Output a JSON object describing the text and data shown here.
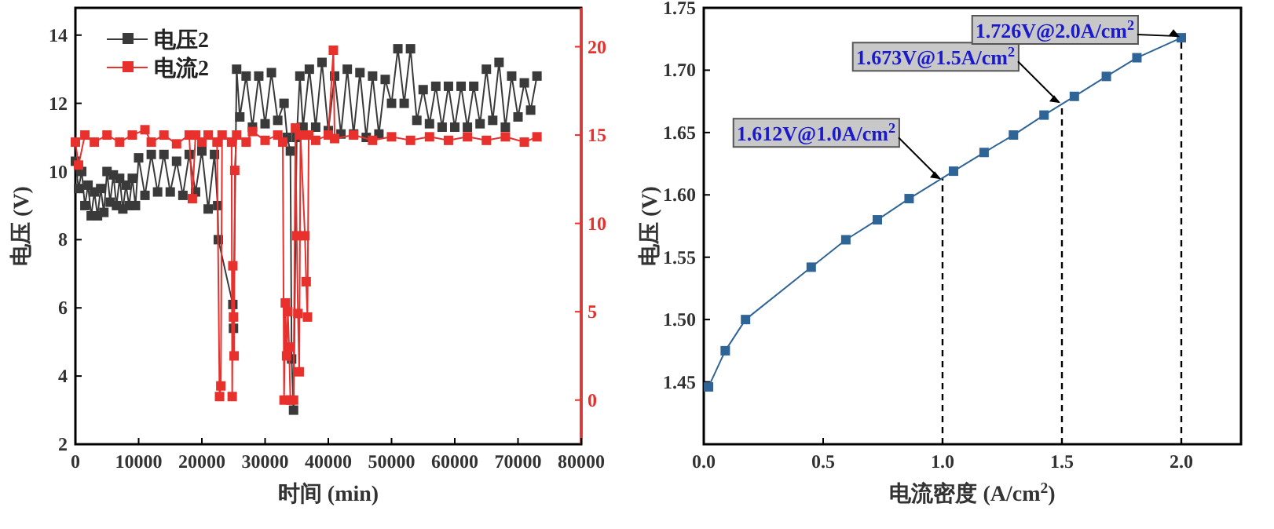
{
  "chart_data": [
    {
      "type": "line",
      "xlabel": "时间 (min)",
      "ylabel": "电压 (V)",
      "xlim": [
        0,
        80000
      ],
      "ylim": [
        2,
        14.8
      ],
      "y2lim": [
        -2.5,
        22.2
      ],
      "xticks": [
        0,
        10000,
        20000,
        30000,
        40000,
        50000,
        60000,
        70000,
        80000
      ],
      "yticks": [
        2,
        4,
        6,
        8,
        10,
        12,
        14
      ],
      "y2ticks": [
        0,
        5,
        10,
        15,
        20
      ],
      "legend": "top left",
      "marker": "square",
      "line_style": "solid",
      "series": [
        {
          "name": "电压2",
          "color": "#3a3a3a",
          "x": [
            0,
            500,
            1000,
            1500,
            2000,
            2500,
            3000,
            3500,
            4000,
            4500,
            5000,
            5500,
            6000,
            6500,
            7000,
            7500,
            8000,
            8500,
            9000,
            9500,
            10000,
            11000,
            12000,
            13000,
            14000,
            15000,
            16000,
            17000,
            18000,
            19000,
            20000,
            21000,
            22000,
            22500,
            22600,
            24900,
            25000,
            25500,
            26000,
            27000,
            28000,
            29000,
            30000,
            31000,
            32000,
            33000,
            33500,
            34000,
            34200,
            34500,
            35000,
            35500,
            36000,
            37000,
            38000,
            39000,
            40000,
            41000,
            42000,
            43000,
            44000,
            45000,
            46000,
            47000,
            48000,
            49000,
            50000,
            51000,
            52000,
            53000,
            54000,
            55000,
            56000,
            57000,
            58000,
            59000,
            60000,
            61000,
            62000,
            63000,
            64000,
            65000,
            66000,
            67000,
            68000,
            69000,
            70000,
            71000,
            72000,
            73000
          ],
          "values": [
            10.3,
            9.5,
            10.0,
            9.0,
            9.6,
            8.7,
            9.4,
            8.7,
            9.5,
            8.8,
            10.0,
            9.1,
            9.9,
            9.0,
            9.8,
            8.9,
            9.6,
            9.0,
            9.8,
            9.0,
            10.4,
            9.3,
            10.5,
            9.4,
            10.5,
            9.4,
            10.3,
            9.3,
            10.5,
            9.4,
            10.6,
            8.9,
            10.5,
            9.0,
            8.0,
            6.1,
            5.4,
            13.0,
            11.6,
            12.8,
            11.3,
            12.8,
            11.4,
            12.9,
            11.5,
            12.0,
            11.0,
            10.6,
            4.5,
            3.0,
            11.0,
            12.8,
            11.3,
            13.0,
            11.3,
            13.2,
            11.2,
            12.8,
            11.1,
            13.0,
            11.1,
            12.9,
            11.0,
            12.8,
            11.1,
            12.7,
            12.0,
            13.6,
            12.0,
            13.6,
            11.5,
            12.4,
            11.4,
            12.5,
            11.3,
            12.5,
            11.3,
            12.5,
            11.3,
            12.5,
            11.4,
            13.0,
            11.5,
            13.2,
            11.3,
            12.8,
            11.6,
            12.6,
            11.8,
            12.8
          ]
        },
        {
          "name": "电流2",
          "color": "#e8302c",
          "axis": "y2",
          "x": [
            0,
            500,
            1500,
            3000,
            5000,
            7000,
            9000,
            11000,
            12000,
            14000,
            16000,
            18000,
            18500,
            19000,
            20000,
            21000,
            22400,
            22800,
            23000,
            23200,
            24700,
            24800,
            24900,
            25000,
            25100,
            25200,
            25500,
            27000,
            28000,
            30000,
            32000,
            32800,
            33000,
            33200,
            33400,
            33600,
            33800,
            34000,
            34500,
            34800,
            35000,
            35200,
            35400,
            35600,
            36300,
            36500,
            36700,
            36900,
            38000,
            40000,
            40800,
            41000,
            44000,
            47000,
            50000,
            53000,
            56000,
            59000,
            62000,
            65000,
            68000,
            71000,
            73000
          ],
          "values": [
            14.6,
            13.3,
            15.0,
            14.6,
            15.0,
            14.6,
            15.0,
            15.3,
            14.6,
            15.0,
            14.5,
            15.0,
            11.4,
            15.0,
            14.6,
            15.0,
            14.6,
            0.2,
            0.8,
            15.0,
            14.6,
            0.2,
            7.6,
            4.7,
            2.5,
            13.0,
            15.0,
            14.6,
            15.2,
            14.7,
            15.0,
            14.6,
            0,
            5.5,
            2.5,
            5.0,
            3.0,
            0,
            0,
            15.4,
            9.3,
            4.9,
            1.6,
            15.0,
            9.3,
            6.7,
            4.7,
            15.0,
            14.7,
            15.0,
            19.8,
            14.8,
            15.0,
            14.7,
            14.9,
            14.7,
            14.9,
            14.7,
            14.9,
            14.7,
            14.9,
            14.6,
            14.9
          ]
        }
      ]
    },
    {
      "type": "line",
      "xlabel": "电流密度 (A/cm$^{2}$)",
      "ylabel": "电压 (V)",
      "xlim": [
        0,
        2.25
      ],
      "ylim": [
        1.4,
        1.75
      ],
      "xticks": [
        {
          "value": 0,
          "label": "0.0"
        },
        0.5,
        {
          "value": 1,
          "label": "1.0"
        },
        1.5,
        {
          "value": 2,
          "label": "2.0"
        }
      ],
      "yticks": [
        1.45,
        {
          "value": 1.5,
          "label": "1.50"
        },
        1.55,
        {
          "value": 1.6,
          "label": "1.60"
        },
        1.65,
        {
          "value": 1.7,
          "label": "1.70"
        },
        1.75
      ],
      "marker": "square",
      "line_style": "solid",
      "series": [
        {
          "color": "#2f6496",
          "x": [
            0.02,
            0.09,
            0.175,
            0.45,
            0.595,
            0.727,
            0.86,
            1.046,
            1.174,
            1.297,
            1.425,
            1.552,
            1.686,
            1.814,
            2.0
          ],
          "values": [
            1.446,
            1.475,
            1.5,
            1.542,
            1.564,
            1.58,
            1.597,
            1.619,
            1.634,
            1.648,
            1.664,
            1.679,
            1.695,
            1.71,
            1.726
          ]
        }
      ],
      "ref_lines": [
        {
          "axis": "x",
          "value": 1,
          "line_style": "dashed",
          "color": "#000000"
        },
        {
          "axis": "x",
          "value": 1.5,
          "line_style": "dashed",
          "color": "#000000"
        },
        {
          "axis": "x",
          "value": 2,
          "line_style": "dashed",
          "color": "#000000"
        }
      ],
      "annotations": [
        {
          "text": "1.612V@1.0A/cm$^{2}$",
          "x": 1,
          "y": 1.612
        },
        {
          "text": "1.673V@1.5A/cm$^{2}$",
          "x": 1.5,
          "y": 1.673
        },
        {
          "text": "1.726V@2.0A/cm$^{2}$",
          "x": 2,
          "y": 1.726
        }
      ]
    }
  ]
}
